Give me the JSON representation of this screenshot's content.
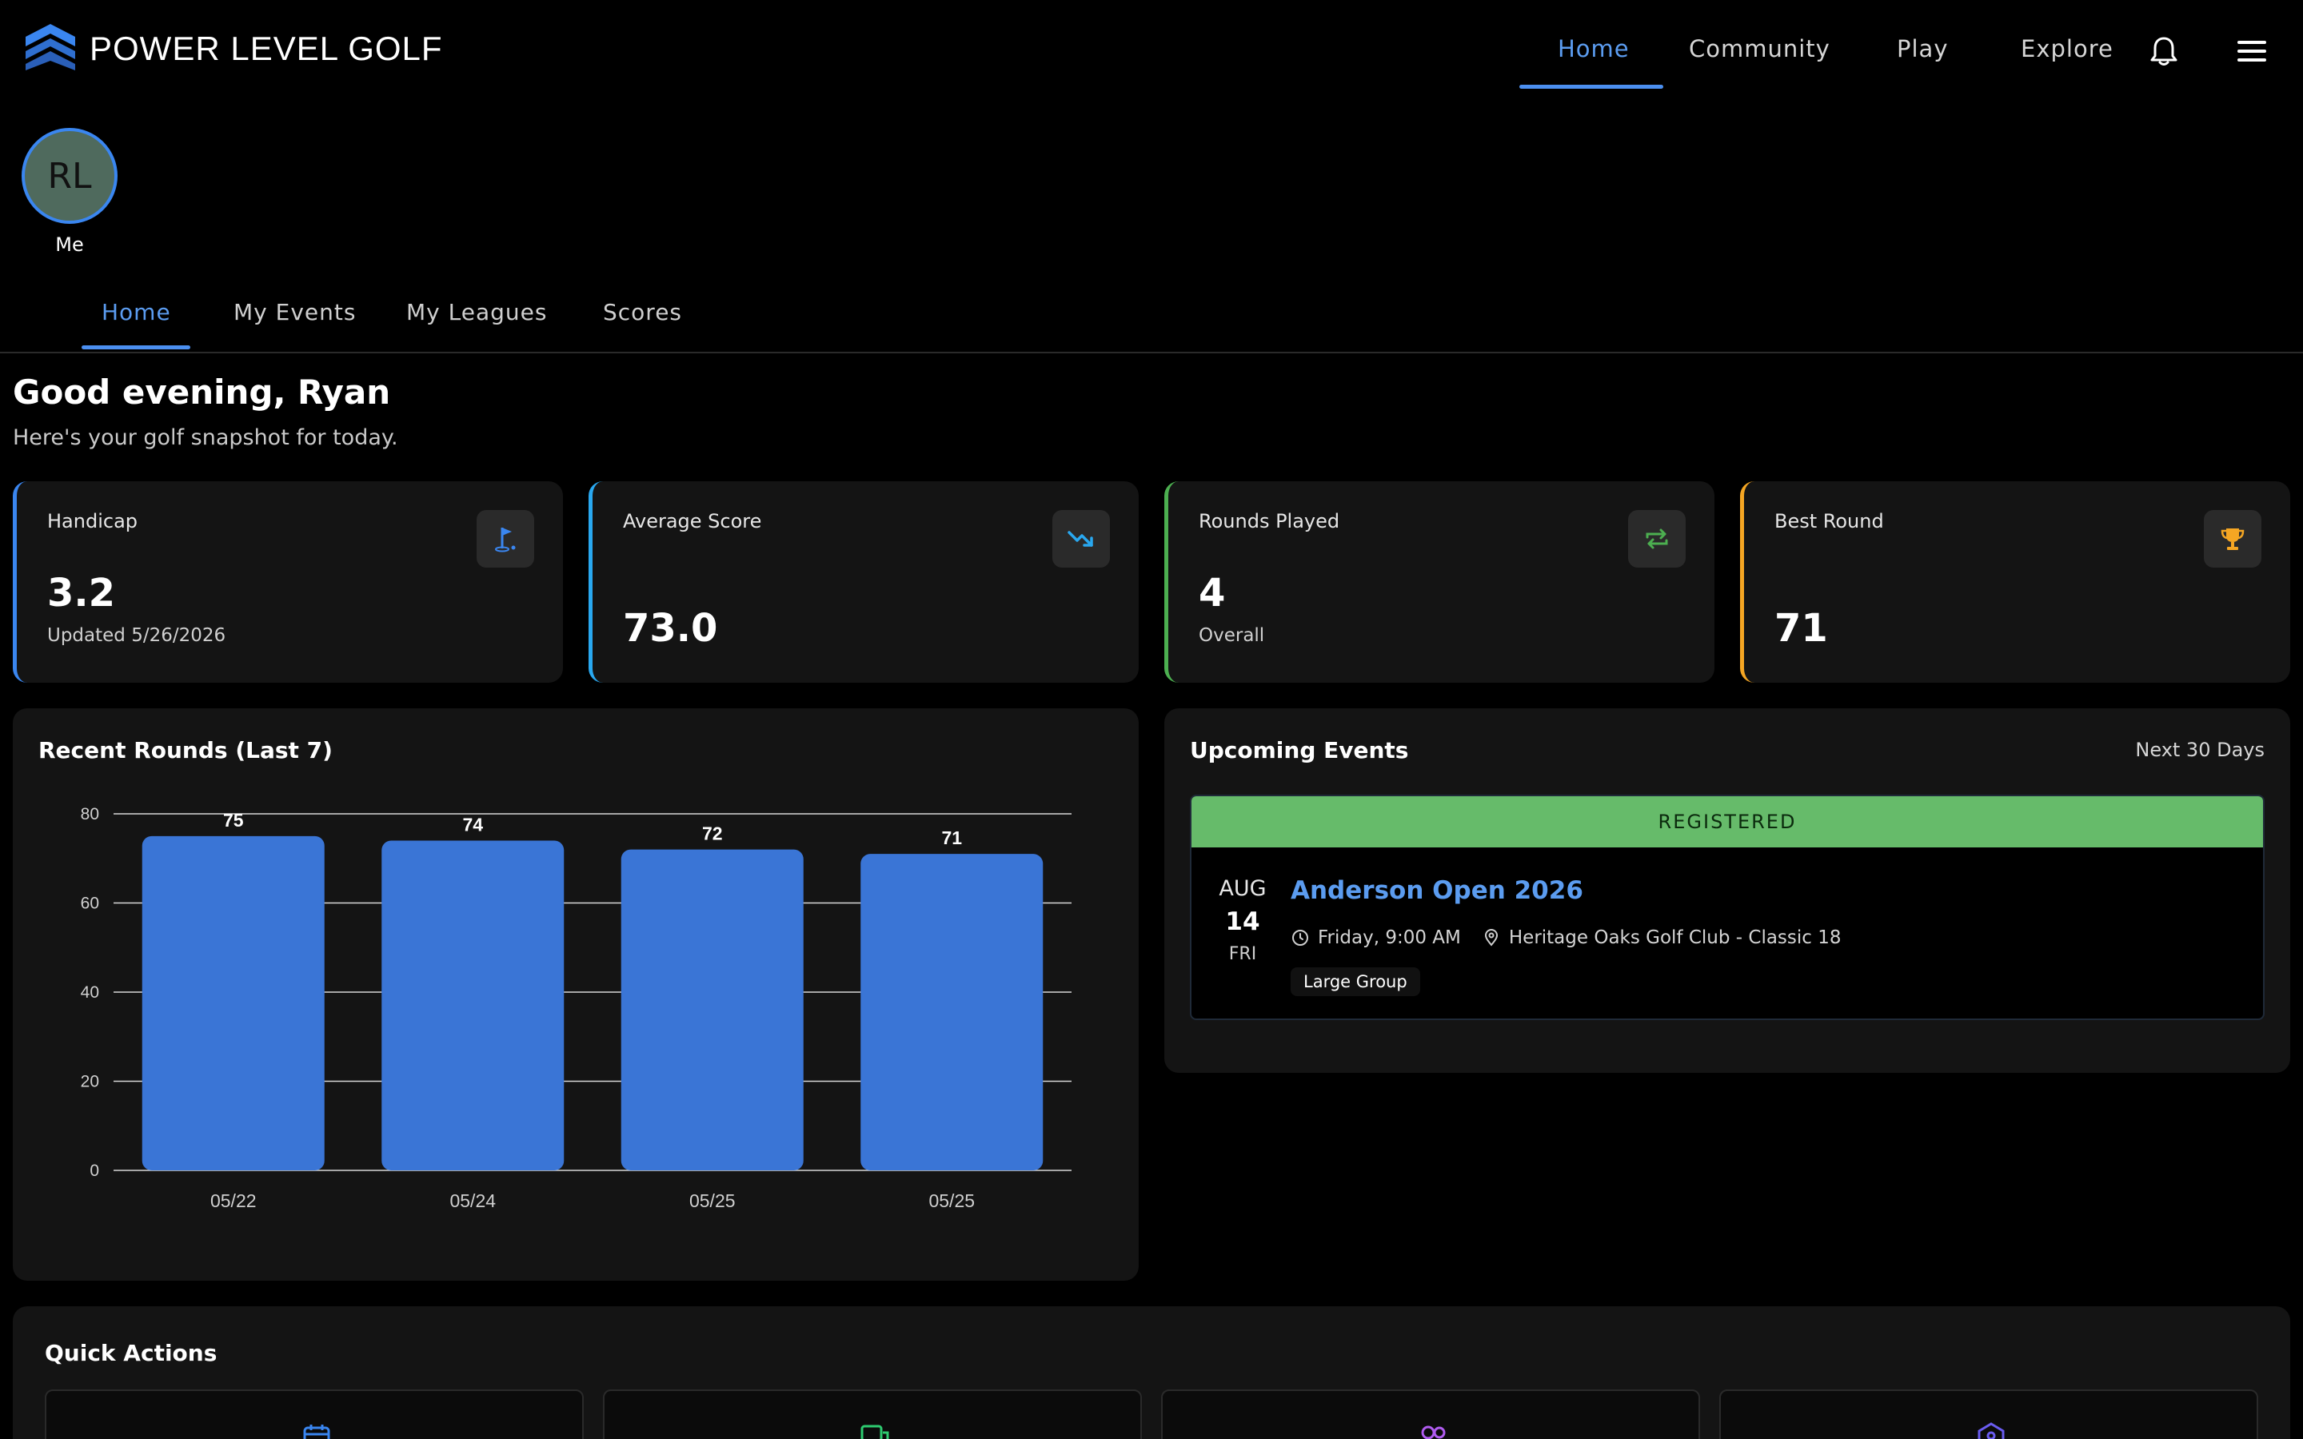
{
  "brand": {
    "name": "POWER LEVEL GOLF",
    "logo_icon": "chevron-stack-logo-icon",
    "logo_color": "#3a86f0"
  },
  "topnav": {
    "items": [
      {
        "label": "Home",
        "active": true
      },
      {
        "label": "Community",
        "active": false
      },
      {
        "label": "Play",
        "active": false
      },
      {
        "label": "Explore",
        "active": false
      }
    ],
    "notifications_icon": "bell-icon",
    "menu_icon": "hamburger-menu-icon"
  },
  "profile": {
    "initials": "RL",
    "caption": "Me"
  },
  "subtabs": [
    {
      "label": "Home",
      "active": true
    },
    {
      "label": "My Events",
      "active": false
    },
    {
      "label": "My Leagues",
      "active": false
    },
    {
      "label": "Scores",
      "active": false
    }
  ],
  "greeting": {
    "title": "Good evening, Ryan",
    "subtitle": "Here's your golf snapshot for today."
  },
  "stats": [
    {
      "label": "Handicap",
      "value": "3.2",
      "sub": "Updated 5/26/2026",
      "icon": "golf-flag-icon",
      "accent": "#3a86f0"
    },
    {
      "label": "Average Score",
      "value": "73.0",
      "sub": "",
      "icon": "trending-down-icon",
      "accent": "#29a8f0"
    },
    {
      "label": "Rounds Played",
      "value": "4",
      "sub": "Overall",
      "icon": "repeat-icon",
      "accent": "#4caf50"
    },
    {
      "label": "Best Round",
      "value": "71",
      "sub": "",
      "icon": "trophy-icon",
      "accent": "#f5a623"
    }
  ],
  "chart_panel": {
    "title": "Recent Rounds (Last 7)"
  },
  "chart_data": {
    "type": "bar",
    "categories": [
      "05/22",
      "05/24",
      "05/25",
      "05/25"
    ],
    "values": [
      75,
      74,
      72,
      71
    ],
    "ylim": [
      0,
      80
    ],
    "yticks": [
      0,
      20,
      40,
      60,
      80
    ],
    "grid": true,
    "bar_color": "#3a75d6",
    "data_labels": true
  },
  "events_panel": {
    "title": "Upcoming Events",
    "range": "Next 30 Days",
    "events": [
      {
        "status": "REGISTERED",
        "month": "AUG",
        "day": "14",
        "weekday": "FRI",
        "name": "Anderson Open 2026",
        "time": "Friday, 9:00 AM",
        "location": "Heritage Oaks Golf Club - Classic 18",
        "tag": "Large Group"
      }
    ]
  },
  "quick_actions": {
    "title": "Quick Actions",
    "items": [
      {
        "icon": "calendar-icon",
        "color": "#3a86f0"
      },
      {
        "icon": "chat-icon",
        "color": "#2ecc71"
      },
      {
        "icon": "group-icon",
        "color": "#b05cf0"
      },
      {
        "icon": "location-shield-icon",
        "color": "#6a5cf0"
      }
    ]
  }
}
